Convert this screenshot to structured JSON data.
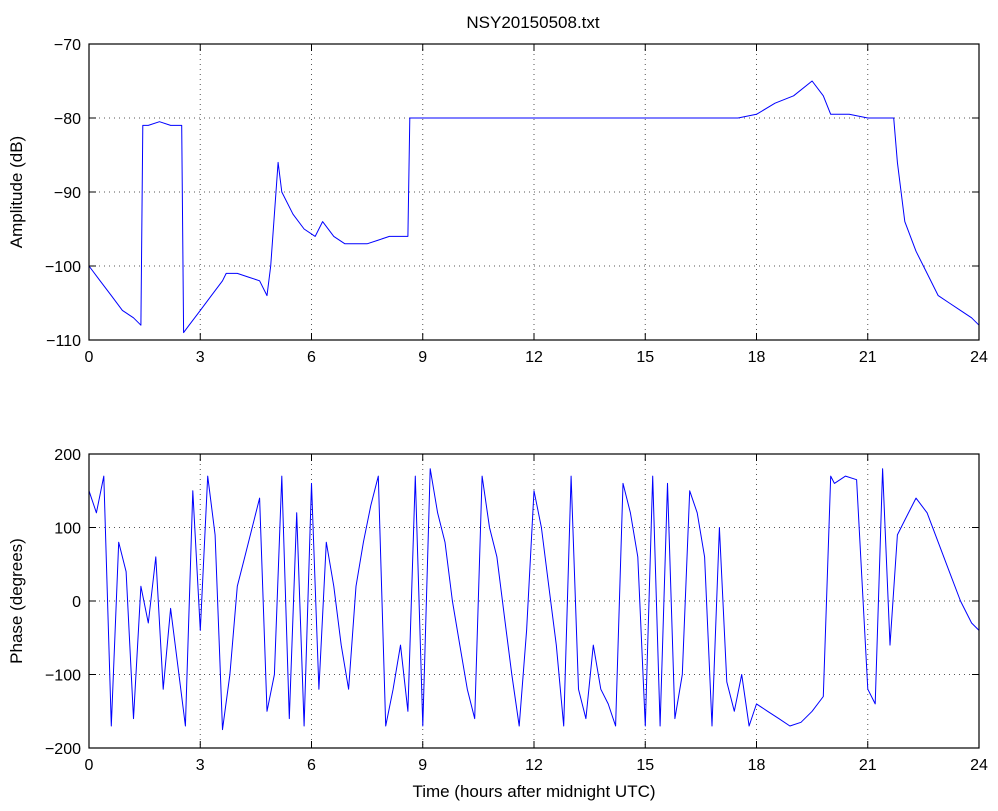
{
  "figure": {
    "title": "NSY20150508.txt"
  },
  "chart_data": [
    {
      "type": "line",
      "title": "NSY20150508.txt",
      "xlabel": "",
      "ylabel": "Amplitude (dB)",
      "xlim": [
        0,
        24
      ],
      "ylim": [
        -110,
        -70
      ],
      "xticks": [
        0,
        3,
        6,
        9,
        12,
        15,
        18,
        21,
        24
      ],
      "yticks": [
        -110,
        -100,
        -90,
        -80,
        -70
      ],
      "grid": true,
      "color": "#0000ff",
      "series": [
        {
          "x": [
            0,
            0.3,
            0.6,
            0.9,
            1.2,
            1.4,
            1.45,
            1.6,
            1.9,
            2.2,
            2.5,
            2.55,
            2.7,
            3.0,
            3.3,
            3.6,
            3.7,
            4.0,
            4.3,
            4.6,
            4.8,
            4.9,
            5.1,
            5.2,
            5.5,
            5.8,
            6.1,
            6.3,
            6.6,
            6.9,
            7.2,
            7.5,
            7.8,
            8.1,
            8.4,
            8.6,
            8.65,
            9,
            10,
            11,
            12,
            13,
            14,
            15,
            16,
            17,
            17.5,
            18,
            18.5,
            19,
            19.5,
            19.8,
            20,
            20.5,
            21,
            21.5,
            21.7,
            21.8,
            22,
            22.3,
            22.6,
            22.9,
            23.2,
            23.5,
            23.8,
            24
          ],
          "y": [
            -100,
            -102,
            -104,
            -106,
            -107,
            -108,
            -81,
            -81,
            -80.5,
            -81,
            -81,
            -109,
            -108,
            -106,
            -104,
            -102,
            -101,
            -101,
            -101.5,
            -102,
            -104,
            -100,
            -86,
            -90,
            -93,
            -95,
            -96,
            -94,
            -96,
            -97,
            -97,
            -97,
            -96.5,
            -96,
            -96,
            -96,
            -80,
            -80,
            -80,
            -80,
            -80,
            -80,
            -80,
            -80,
            -80,
            -80,
            -80,
            -79.5,
            -78,
            -77,
            -75,
            -77,
            -79.5,
            -79.5,
            -80,
            -80,
            -80,
            -86,
            -94,
            -98,
            -101,
            -104,
            -105,
            -106,
            -107,
            -108
          ]
        }
      ]
    },
    {
      "type": "line",
      "title": "",
      "xlabel": "Time (hours after midnight UTC)",
      "ylabel": "Phase (degrees)",
      "xlim": [
        0,
        24
      ],
      "ylim": [
        -200,
        200
      ],
      "xticks": [
        0,
        3,
        6,
        9,
        12,
        15,
        18,
        21,
        24
      ],
      "yticks": [
        -200,
        -100,
        0,
        100,
        200
      ],
      "grid": true,
      "color": "#0000ff",
      "series": [
        {
          "x": [
            0,
            0.2,
            0.4,
            0.6,
            0.8,
            1.0,
            1.2,
            1.4,
            1.6,
            1.8,
            2.0,
            2.2,
            2.4,
            2.6,
            2.8,
            3.0,
            3.2,
            3.4,
            3.6,
            3.8,
            4.0,
            4.2,
            4.4,
            4.6,
            4.8,
            5.0,
            5.2,
            5.4,
            5.6,
            5.8,
            6.0,
            6.2,
            6.4,
            6.6,
            6.8,
            7.0,
            7.2,
            7.4,
            7.6,
            7.8,
            8.0,
            8.2,
            8.4,
            8.6,
            8.8,
            9.0,
            9.2,
            9.4,
            9.6,
            9.8,
            10.0,
            10.2,
            10.4,
            10.6,
            10.8,
            11.0,
            11.2,
            11.4,
            11.6,
            11.8,
            12.0,
            12.2,
            12.4,
            12.6,
            12.8,
            13.0,
            13.2,
            13.4,
            13.6,
            13.8,
            14.0,
            14.2,
            14.4,
            14.6,
            14.8,
            15.0,
            15.2,
            15.4,
            15.6,
            15.8,
            16.0,
            16.2,
            16.4,
            16.6,
            16.8,
            17.0,
            17.2,
            17.4,
            17.6,
            17.8,
            18.0,
            18.3,
            18.6,
            18.9,
            19.2,
            19.5,
            19.8,
            20.0,
            20.1,
            20.4,
            20.7,
            21.0,
            21.2,
            21.4,
            21.6,
            21.8,
            22.0,
            22.3,
            22.6,
            22.9,
            23.2,
            23.5,
            23.8,
            24.0
          ],
          "y": [
            150,
            120,
            170,
            -170,
            80,
            40,
            -160,
            20,
            -30,
            60,
            -120,
            -10,
            -90,
            -170,
            150,
            -40,
            170,
            90,
            -175,
            -100,
            20,
            60,
            100,
            140,
            -150,
            -100,
            170,
            -160,
            120,
            -170,
            160,
            -120,
            80,
            20,
            -60,
            -120,
            20,
            80,
            130,
            170,
            -170,
            -120,
            -60,
            -150,
            170,
            -170,
            180,
            120,
            80,
            0,
            -60,
            -120,
            -160,
            170,
            100,
            60,
            -20,
            -100,
            -170,
            -40,
            150,
            100,
            20,
            -60,
            -170,
            170,
            -120,
            -160,
            -60,
            -120,
            -140,
            -170,
            160,
            120,
            60,
            -170,
            170,
            -170,
            160,
            -160,
            -100,
            150,
            120,
            60,
            -170,
            100,
            -110,
            -150,
            -100,
            -170,
            -140,
            -150,
            -160,
            -170,
            -165,
            -150,
            -130,
            170,
            160,
            170,
            165,
            -120,
            -140,
            180,
            -60,
            90,
            110,
            140,
            120,
            80,
            40,
            0,
            -30,
            -40
          ]
        }
      ]
    }
  ]
}
